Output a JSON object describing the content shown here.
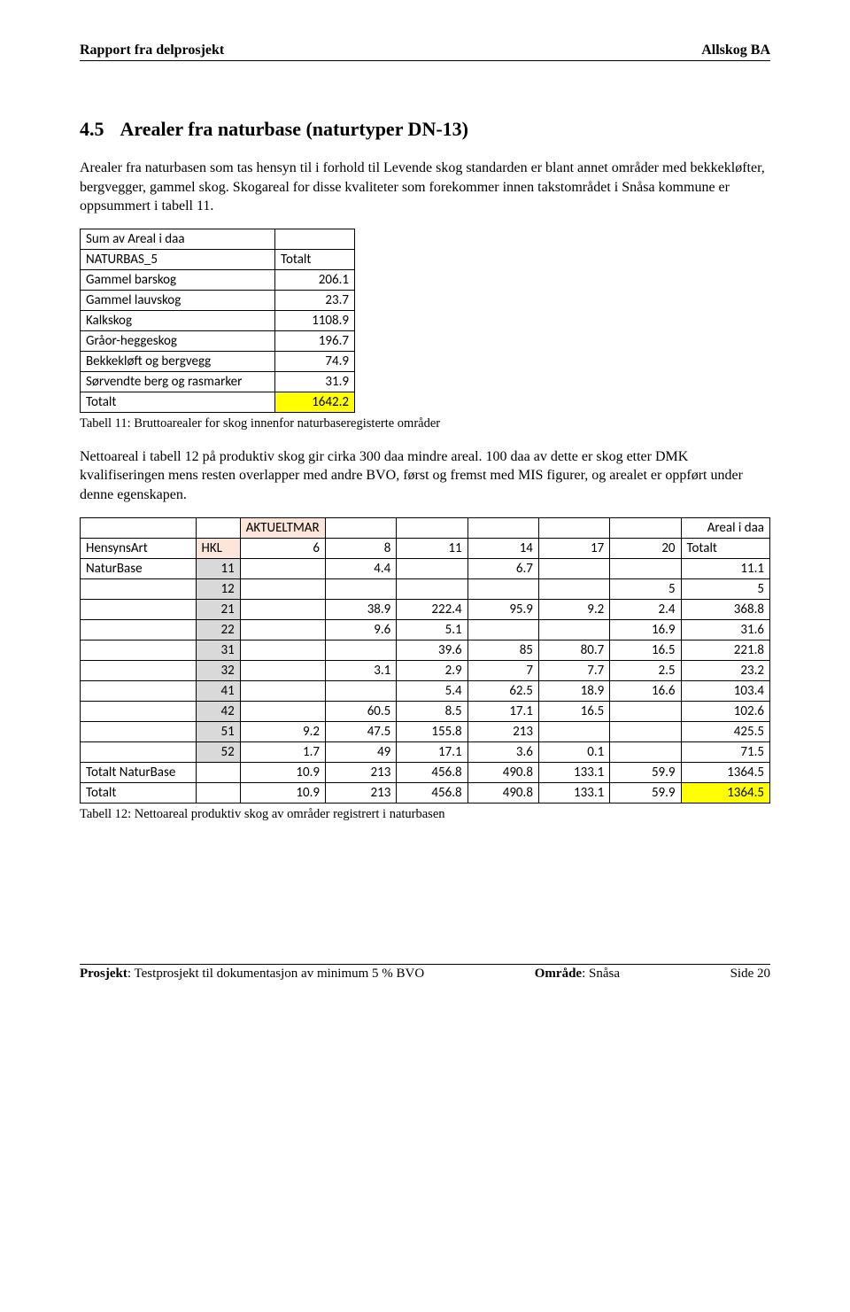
{
  "header": {
    "left": "Rapport fra delprosjekt",
    "right": "Allskog BA"
  },
  "section": {
    "number": "4.5",
    "title": "Arealer fra naturbase (naturtyper DN-13)"
  },
  "para1": "Arealer fra naturbasen som tas hensyn til i forhold til Levende skog standarden er blant annet områder med bekkekløfter, bergvegger, gammel skog. Skogareal for disse kvaliteter som forekommer innen takstområdet i Snåsa kommune er oppsummert i tabell 11.",
  "table1": {
    "bg_header": "#ffffff",
    "bg_highlight": "#ffff00",
    "title_row": "Sum av Areal i daa",
    "col1_header": "NATURBAS_5",
    "col2_header": "Totalt",
    "rows": [
      {
        "label": "Gammel barskog",
        "val": "206.1"
      },
      {
        "label": "Gammel lauvskog",
        "val": "23.7"
      },
      {
        "label": "Kalkskog",
        "val": "1108.9"
      },
      {
        "label": "Gråor-heggeskog",
        "val": "196.7"
      },
      {
        "label": "Bekkekløft og bergvegg",
        "val": "74.9"
      },
      {
        "label": "Sørvendte berg og rasmarker",
        "val": "31.9"
      }
    ],
    "total_label": "Totalt",
    "total_val": "1642.2"
  },
  "caption1": "Tabell 11: Bruttoarealer for skog innenfor naturbaseregisterte områder",
  "para2": "Nettoareal i tabell 12 på produktiv skog gir cirka 300 daa mindre areal. 100 daa av dette er skog etter DMK kvalifiseringen mens resten overlapper med andre BVO, først og fremst med MIS figurer, og arealet er oppført under denne egenskapen.",
  "table2": {
    "bg_peach": "#fde6d9",
    "bg_gray": "#d9d9d9",
    "bg_highlight": "#ffff00",
    "top_label": "AKTUELTMAR",
    "top_right": "Areal i daa",
    "h_col1": "HensynsArt",
    "h_col2": "HKL",
    "h_cols": [
      "6",
      "8",
      "11",
      "14",
      "17",
      "20"
    ],
    "h_total": "Totalt",
    "row_label": "NaturBase",
    "rows": [
      {
        "hkl": "11",
        "c": [
          "",
          "4.4",
          "",
          "6.7",
          "",
          ""
        ],
        "tot": "11.1"
      },
      {
        "hkl": "12",
        "c": [
          "",
          "",
          "",
          "",
          "",
          "5"
        ],
        "tot": "5"
      },
      {
        "hkl": "21",
        "c": [
          "",
          "38.9",
          "222.4",
          "95.9",
          "9.2",
          "2.4"
        ],
        "tot": "368.8"
      },
      {
        "hkl": "22",
        "c": [
          "",
          "9.6",
          "5.1",
          "",
          "",
          "16.9"
        ],
        "tot": "31.6"
      },
      {
        "hkl": "31",
        "c": [
          "",
          "",
          "39.6",
          "85",
          "80.7",
          "16.5"
        ],
        "tot": "221.8"
      },
      {
        "hkl": "32",
        "c": [
          "",
          "3.1",
          "2.9",
          "7",
          "7.7",
          "2.5"
        ],
        "tot": "23.2"
      },
      {
        "hkl": "41",
        "c": [
          "",
          "",
          "5.4",
          "62.5",
          "18.9",
          "16.6"
        ],
        "tot": "103.4"
      },
      {
        "hkl": "42",
        "c": [
          "",
          "60.5",
          "8.5",
          "17.1",
          "16.5",
          ""
        ],
        "tot": "102.6"
      },
      {
        "hkl": "51",
        "c": [
          "9.2",
          "47.5",
          "155.8",
          "213",
          "",
          ""
        ],
        "tot": "425.5"
      },
      {
        "hkl": "52",
        "c": [
          "1.7",
          "49",
          "17.1",
          "3.6",
          "0.1",
          ""
        ],
        "tot": "71.5"
      }
    ],
    "sub_label": "Totalt NaturBase",
    "sub_c": [
      "10.9",
      "213",
      "456.8",
      "490.8",
      "133.1",
      "59.9"
    ],
    "sub_tot": "1364.5",
    "grand_label": "Totalt",
    "grand_c": [
      "10.9",
      "213",
      "456.8",
      "490.8",
      "133.1",
      "59.9"
    ],
    "grand_tot": "1364.5"
  },
  "caption2": "Tabell 12: Nettoareal produktiv skog av områder registrert i naturbasen",
  "footer": {
    "left_bold": "Prosjekt",
    "left_rest": ": Testprosjekt til dokumentasjon av minimum 5 % BVO",
    "mid_bold": "Område",
    "mid_rest": ": Snåsa",
    "right": "Side 20"
  }
}
